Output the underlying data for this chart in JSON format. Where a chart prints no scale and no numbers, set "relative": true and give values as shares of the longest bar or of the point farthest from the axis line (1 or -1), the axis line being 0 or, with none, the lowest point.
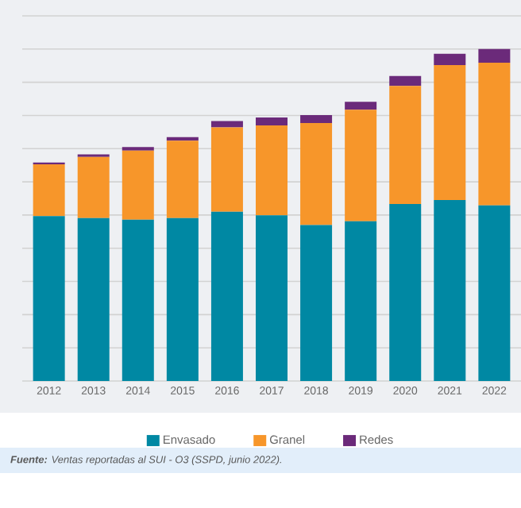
{
  "chart_data": {
    "type": "bar",
    "stacked": true,
    "relative": true,
    "grid": "y",
    "legend": "bottom",
    "categories": [
      "2012",
      "2013",
      "2014",
      "2015",
      "2016",
      "2017",
      "2018",
      "2019",
      "2020",
      "2021",
      "2022"
    ],
    "series": [
      {
        "name": "Envasado",
        "color": "#0088a3",
        "values": [
          0.497,
          0.491,
          0.486,
          0.491,
          0.51,
          0.499,
          0.47,
          0.481,
          0.533,
          0.545,
          0.529
        ]
      },
      {
        "name": "Granel",
        "color": "#f7962a",
        "values": [
          0.156,
          0.184,
          0.208,
          0.233,
          0.254,
          0.271,
          0.307,
          0.336,
          0.356,
          0.407,
          0.43
        ]
      },
      {
        "name": "Redes",
        "color": "#6b2a7a",
        "values": [
          0.005,
          0.008,
          0.011,
          0.011,
          0.019,
          0.024,
          0.024,
          0.024,
          0.03,
          0.034,
          0.041
        ]
      }
    ],
    "annotations": [
      "**Fuente:** Ventas reportadas al SUI - O3 (SSPD, junio 2022)."
    ]
  }
}
